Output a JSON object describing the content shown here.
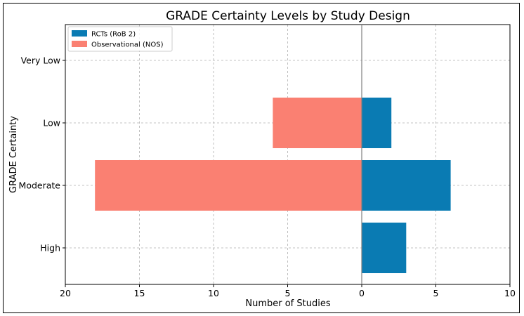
{
  "chart_data": {
    "type": "bar",
    "orientation": "horizontal-diverging",
    "title": "GRADE Certainty Levels by Study Design",
    "xlabel": "Number of Studies",
    "ylabel": "GRADE Certainty",
    "xlim": [
      -20,
      10
    ],
    "x_ticks": [
      -20,
      -15,
      -10,
      -5,
      0,
      5,
      10
    ],
    "x_tick_labels": [
      "20",
      "15",
      "10",
      "5",
      "0",
      "5",
      "10"
    ],
    "categories": [
      "High",
      "Moderate",
      "Low",
      "Very Low"
    ],
    "grid": true,
    "legend_position": "top-left",
    "series": [
      {
        "name": "RCTs (RoB 2)",
        "values": [
          3,
          6,
          2,
          0
        ],
        "color": "#0a7bb3",
        "direction": "right"
      },
      {
        "name": "Observational (NOS)",
        "values": [
          0,
          18,
          6,
          0
        ],
        "color": "#fa8072",
        "direction": "left"
      }
    ]
  }
}
